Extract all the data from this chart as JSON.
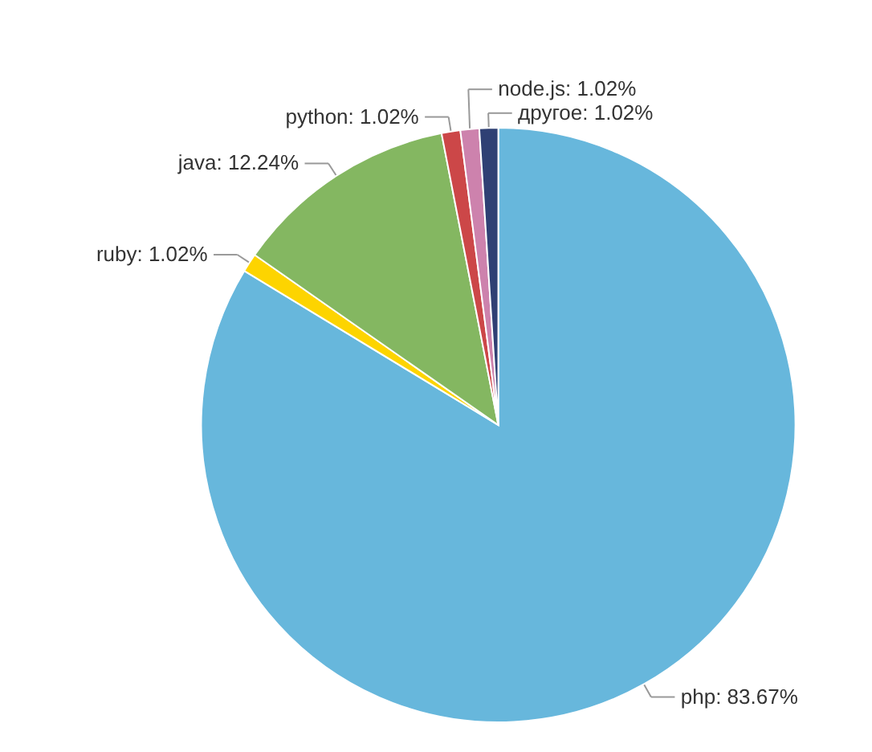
{
  "chart_data": {
    "type": "pie",
    "categories": [
      "php",
      "ruby",
      "java",
      "python",
      "node.js",
      "другое"
    ],
    "values": [
      83.67,
      1.02,
      12.24,
      1.02,
      1.02,
      1.02
    ],
    "value_labels": [
      "83.67%",
      "1.02%",
      "12.24%",
      "1.02%",
      "1.02%",
      "1.02%"
    ],
    "colors": [
      "#67b7dc",
      "#fdd400",
      "#84b761",
      "#cc4748",
      "#cd82ad",
      "#2f4074"
    ],
    "legend": false
  }
}
